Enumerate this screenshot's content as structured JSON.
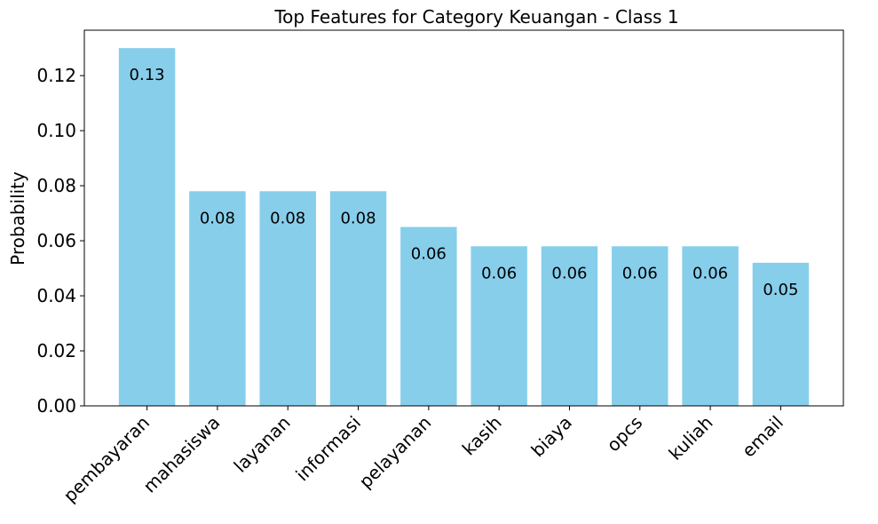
{
  "chart_data": {
    "type": "bar",
    "title": "Top Features for Category Keuangan - Class 1",
    "xlabel": "",
    "ylabel": "Probability",
    "categories": [
      "pembayaran",
      "mahasiswa",
      "layanan",
      "informasi",
      "pelayanan",
      "kasih",
      "biaya",
      "opcs",
      "kuliah",
      "email"
    ],
    "values": [
      0.13,
      0.078,
      0.078,
      0.078,
      0.065,
      0.058,
      0.058,
      0.058,
      0.058,
      0.052
    ],
    "data_labels": [
      "0.13",
      "0.08",
      "0.08",
      "0.08",
      "0.06",
      "0.06",
      "0.06",
      "0.06",
      "0.06",
      "0.05"
    ],
    "ylim": [
      0,
      0.1365
    ],
    "yticks": [
      0.0,
      0.02,
      0.04,
      0.06,
      0.08,
      0.1,
      0.12
    ],
    "ytick_labels": [
      "0.00",
      "0.02",
      "0.04",
      "0.06",
      "0.08",
      "0.10",
      "0.12"
    ],
    "bar_color": "#87ceeb",
    "grid": false,
    "legend": "none"
  }
}
